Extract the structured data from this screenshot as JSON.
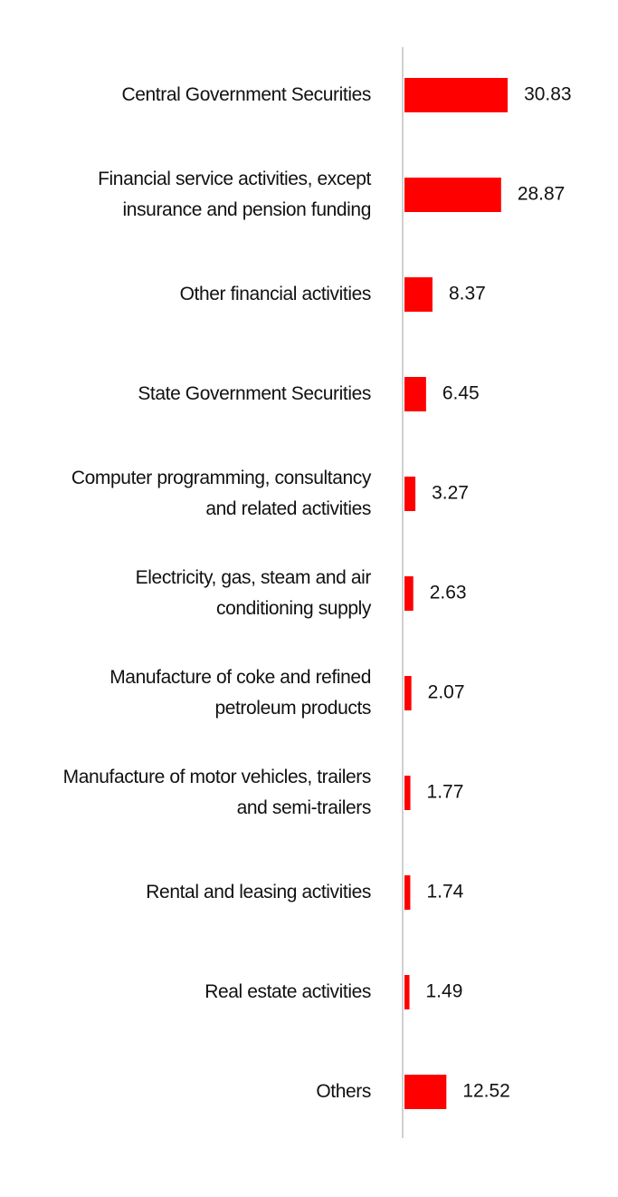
{
  "chart_data": {
    "type": "bar",
    "orientation": "horizontal",
    "categories": [
      "Central Government Securities",
      "Financial service activities, except insurance and pension funding",
      "Other financial activities",
      "State Government Securities",
      "Computer programming, consultancy and related activities",
      "Electricity, gas, steam and air conditioning supply",
      "Manufacture of coke and refined petroleum products",
      "Manufacture of motor vehicles, trailers and semi-trailers",
      "Rental and leasing activities",
      "Real estate activities",
      "Others"
    ],
    "values": [
      30.83,
      28.87,
      8.37,
      6.45,
      3.27,
      2.63,
      2.07,
      1.77,
      1.74,
      1.49,
      12.52
    ],
    "color": "#ff0000"
  }
}
